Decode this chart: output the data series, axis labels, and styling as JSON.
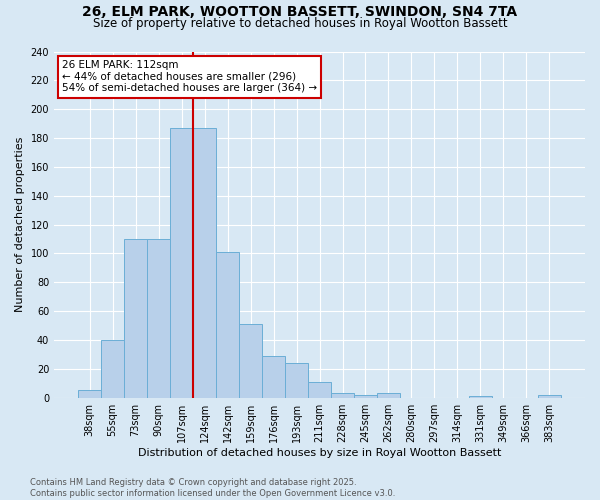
{
  "title": "26, ELM PARK, WOOTTON BASSETT, SWINDON, SN4 7TA",
  "subtitle": "Size of property relative to detached houses in Royal Wootton Bassett",
  "xlabel": "Distribution of detached houses by size in Royal Wootton Bassett",
  "ylabel": "Number of detached properties",
  "bar_labels": [
    "38sqm",
    "55sqm",
    "73sqm",
    "90sqm",
    "107sqm",
    "124sqm",
    "142sqm",
    "159sqm",
    "176sqm",
    "193sqm",
    "211sqm",
    "228sqm",
    "245sqm",
    "262sqm",
    "280sqm",
    "297sqm",
    "314sqm",
    "331sqm",
    "349sqm",
    "366sqm",
    "383sqm"
  ],
  "bar_values": [
    5,
    40,
    110,
    110,
    187,
    187,
    101,
    51,
    29,
    24,
    11,
    3,
    2,
    3,
    0,
    0,
    0,
    1,
    0,
    0,
    2
  ],
  "bar_color": "#b8d0ea",
  "bar_edge_color": "#6baed6",
  "background_color": "#d8e8f4",
  "grid_color": "#ffffff",
  "red_line_x": 4.5,
  "annotation_text": "26 ELM PARK: 112sqm\n← 44% of detached houses are smaller (296)\n54% of semi-detached houses are larger (364) →",
  "annotation_box_color": "#ffffff",
  "annotation_box_edge": "#cc0000",
  "red_line_color": "#cc0000",
  "ylim": [
    0,
    240
  ],
  "yticks": [
    0,
    20,
    40,
    60,
    80,
    100,
    120,
    140,
    160,
    180,
    200,
    220,
    240
  ],
  "footer": "Contains HM Land Registry data © Crown copyright and database right 2025.\nContains public sector information licensed under the Open Government Licence v3.0.",
  "title_fontsize": 10,
  "subtitle_fontsize": 8.5,
  "xlabel_fontsize": 8,
  "ylabel_fontsize": 8,
  "tick_fontsize": 7,
  "annotation_fontsize": 7.5,
  "footer_fontsize": 6
}
